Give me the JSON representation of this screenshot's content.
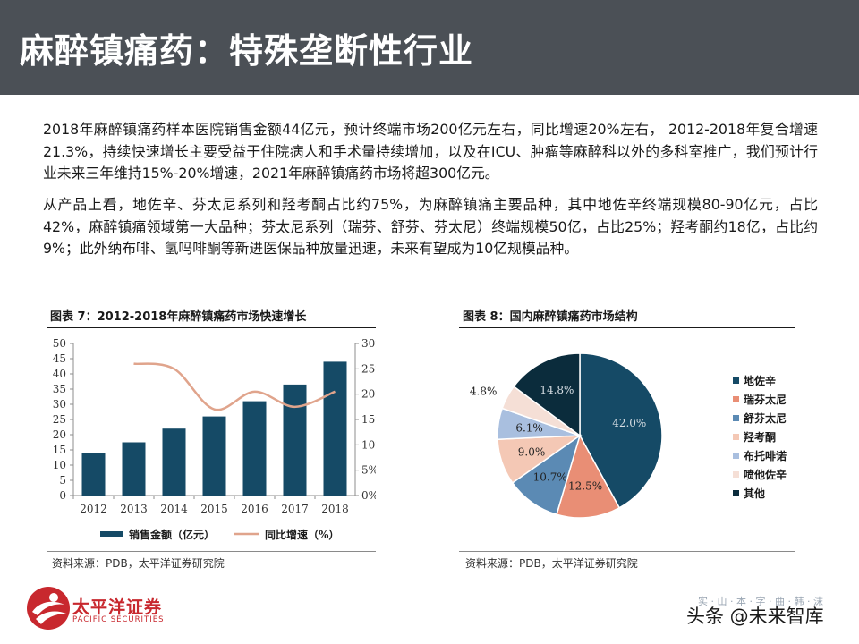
{
  "slide": {
    "title": "麻醉镇痛药：特殊垄断性行业",
    "paragraph1": "2018年麻醉镇痛药样本医院销售金额44亿元，预计终端市场200亿元左右，同比增速20%左右， 2012-2018年复合增速21.3%，持续快速增长主要受益于住院病人和手术量持续增加，以及在ICU、肿瘤等麻醉科以外的多科室推广，我们预计行业未来三年维持15%-20%增速，2021年麻醉镇痛药市场将超300亿元。",
    "paragraph2": "从产品上看，地佐辛、芬太尼系列和羟考酮占比约75%，为麻醉镇痛主要品种，其中地佐辛终端规模80-90亿元，占比42%，麻醉镇痛领域第一大品种；芬太尼系列（瑞芬、舒芬、芬太尼）终端规模50亿，占比25%；羟考酮约18亿，占比约9%；此外纳布啡、氢吗啡酮等新进医保品种放量迅速，未来有望成为10亿规模品种。"
  },
  "figure7": {
    "title": "图表 7：2012-2018年麻醉镇痛药市场快速增长",
    "source": "资料来源：PDB，太平洋证券研究院"
  },
  "figure8": {
    "title": "图表 8：国内麻醉镇痛药市场结构",
    "source": "资料来源：PDB，太平洋证券研究院"
  },
  "logo": {
    "name_cn": "太平洋证券",
    "name_en": "PACIFIC SECURITIES"
  },
  "watermark": {
    "text": "头条 @未来智库",
    "faint_text": "实 · 山 · 本 · 字 · 曲 · 韩 · 沫"
  },
  "colors": {
    "header_bg": "#4b5056",
    "bar": "#154a66",
    "line": "#e0a48c",
    "brand_red": "#c8282e"
  },
  "chart_data": [
    {
      "type": "bar",
      "categories": [
        "2012",
        "2013",
        "2014",
        "2015",
        "2016",
        "2017",
        "2018"
      ],
      "series": [
        {
          "name": "销售金额（亿元）",
          "type": "bar",
          "axis": "left",
          "values": [
            14,
            17.5,
            22,
            26,
            31,
            36.5,
            44
          ]
        },
        {
          "name": "同比增速（%）",
          "type": "line",
          "axis": "right",
          "values": [
            null,
            26,
            25,
            17,
            20.5,
            17.5,
            20.5
          ]
        }
      ],
      "y_left": {
        "min": 0,
        "max": 50,
        "step": 5,
        "ticks": [
          "0",
          "5",
          "10",
          "15",
          "20",
          "25",
          "30",
          "35",
          "40",
          "45",
          "50"
        ]
      },
      "y_right": {
        "min": 0,
        "max": 30,
        "step": 5,
        "ticks": [
          "0%",
          "5%",
          "10%",
          "15%",
          "20%",
          "25%",
          "30%"
        ]
      },
      "grid": false,
      "legend_position": "bottom"
    },
    {
      "type": "pie",
      "labels": [
        "地佐辛",
        "瑞芬太尼",
        "舒芬太尼",
        "羟考酮",
        "布托啡诺",
        "喷他佐辛",
        "其他"
      ],
      "values": [
        42.0,
        12.5,
        10.7,
        9.0,
        6.1,
        4.8,
        14.8
      ],
      "value_labels": [
        "42.0%",
        "12.5%",
        "10.7%",
        "9.0%",
        "6.1%",
        "4.8%",
        "14.8%"
      ],
      "colors": [
        "#154a66",
        "#e98e75",
        "#5b8ab4",
        "#f4c8b5",
        "#a9bfdf",
        "#f5dfd6",
        "#0b2c3c"
      ],
      "legend_position": "right"
    }
  ]
}
